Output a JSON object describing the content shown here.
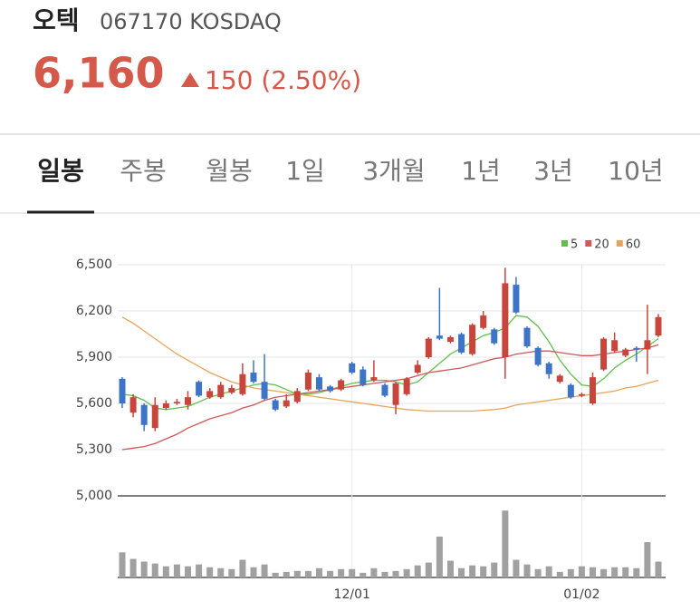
{
  "header": {
    "name": "오텍",
    "code": "067170 KOSDAQ",
    "price": "6,160",
    "change": "150 (2.50%)"
  },
  "tabs": [
    "일봉",
    "주봉",
    "월봉",
    "1일",
    "3개월",
    "1년",
    "3년",
    "10년"
  ],
  "chart_data": {
    "type": "candlestick",
    "categories": [
      null,
      null,
      null,
      null,
      null,
      null,
      null,
      null,
      null,
      null,
      null,
      null,
      null,
      null,
      null,
      null,
      null,
      null,
      null,
      null,
      null,
      "12/01",
      null,
      null,
      null,
      null,
      null,
      null,
      null,
      null,
      null,
      null,
      null,
      null,
      null,
      null,
      null,
      null,
      null,
      null,
      null,
      null,
      "01/02",
      null,
      null,
      null,
      null,
      null,
      null,
      null
    ],
    "open": [
      5760,
      5540,
      5590,
      5440,
      5570,
      5600,
      5590,
      5740,
      5640,
      5640,
      5670,
      5660,
      5800,
      5740,
      5620,
      5580,
      5610,
      5690,
      5770,
      5710,
      5690,
      5860,
      5820,
      5750,
      5720,
      5590,
      5660,
      5800,
      5900,
      6040,
      6000,
      6050,
      5920,
      6090,
      6080,
      5900,
      6370,
      6090,
      5960,
      5860,
      5740,
      5720,
      5650,
      5600,
      5820,
      5940,
      5910,
      5960,
      5950,
      6040
    ],
    "high": [
      5770,
      5660,
      5600,
      5640,
      5620,
      5630,
      5680,
      5750,
      5700,
      5740,
      5720,
      5860,
      5880,
      5920,
      5630,
      5660,
      5700,
      5820,
      5790,
      5720,
      5760,
      5870,
      5840,
      5880,
      5730,
      5740,
      5770,
      5880,
      6030,
      6350,
      6040,
      6060,
      6120,
      6200,
      6090,
      6480,
      6420,
      6100,
      5970,
      5870,
      5790,
      5730,
      5670,
      5800,
      6030,
      6060,
      5960,
      5970,
      6240,
      6180
    ],
    "low": [
      5570,
      5510,
      5420,
      5420,
      5560,
      5590,
      5560,
      5640,
      5630,
      5630,
      5660,
      5650,
      5730,
      5620,
      5550,
      5570,
      5600,
      5680,
      5680,
      5670,
      5680,
      5790,
      5710,
      5740,
      5640,
      5530,
      5650,
      5790,
      5890,
      6010,
      5990,
      5920,
      5910,
      6080,
      5980,
      5760,
      6180,
      5960,
      5840,
      5760,
      5730,
      5630,
      5640,
      5590,
      5810,
      5930,
      5900,
      5870,
      5790,
      6030
    ],
    "close": [
      5600,
      5640,
      5460,
      5590,
      5600,
      5610,
      5640,
      5650,
      5680,
      5720,
      5700,
      5790,
      5740,
      5630,
      5560,
      5620,
      5680,
      5800,
      5690,
      5680,
      5750,
      5800,
      5720,
      5770,
      5650,
      5730,
      5760,
      5850,
      6020,
      6020,
      6030,
      5930,
      6110,
      6170,
      5990,
      6380,
      6190,
      5970,
      5850,
      5790,
      5780,
      5640,
      5660,
      5770,
      6020,
      6010,
      5950,
      5950,
      6010,
      6160
    ],
    "volume": [
      27,
      20,
      17,
      15,
      12,
      14,
      12,
      14,
      11,
      10,
      9,
      19,
      11,
      14,
      5,
      6,
      7,
      7,
      10,
      7,
      9,
      9,
      5,
      10,
      6,
      7,
      9,
      13,
      16,
      44,
      18,
      10,
      13,
      12,
      16,
      72,
      19,
      14,
      9,
      12,
      6,
      9,
      12,
      11,
      9,
      11,
      11,
      10,
      38,
      17
    ],
    "vlim": [
      0,
      80
    ],
    "up_color": "#c8453c",
    "down_color": "#3e74c8",
    "volume_color": "#a0a0a0",
    "series": [
      {
        "name": "5",
        "color": "#5fbf4a",
        "values": [
          5660,
          5650,
          5620,
          5570,
          5560,
          5570,
          5580,
          5610,
          5640,
          5660,
          5680,
          5700,
          5720,
          5730,
          5720,
          5690,
          5660,
          5660,
          5670,
          5690,
          5710,
          5730,
          5740,
          5750,
          5750,
          5740,
          5720,
          5740,
          5800,
          5860,
          5920,
          5960,
          6000,
          6040,
          6060,
          6090,
          6170,
          6160,
          6100,
          6000,
          5880,
          5790,
          5720,
          5710,
          5760,
          5830,
          5880,
          5920,
          5970,
          6020
        ]
      },
      {
        "name": "20",
        "color": "#d0585a",
        "values": [
          5300,
          5310,
          5320,
          5340,
          5370,
          5400,
          5440,
          5470,
          5500,
          5520,
          5540,
          5570,
          5590,
          5620,
          5640,
          5650,
          5660,
          5670,
          5680,
          5690,
          5700,
          5710,
          5720,
          5730,
          5740,
          5750,
          5760,
          5780,
          5800,
          5810,
          5820,
          5830,
          5850,
          5870,
          5890,
          5900,
          5920,
          5930,
          5940,
          5940,
          5930,
          5920,
          5910,
          5910,
          5920,
          5930,
          5940,
          5950,
          5960,
          5980
        ]
      },
      {
        "name": "60",
        "color": "#e8a45c",
        "values": [
          6160,
          6120,
          6070,
          6020,
          5970,
          5920,
          5880,
          5840,
          5800,
          5770,
          5740,
          5720,
          5700,
          5690,
          5680,
          5670,
          5660,
          5650,
          5640,
          5630,
          5620,
          5610,
          5600,
          5590,
          5580,
          5570,
          5560,
          5555,
          5550,
          5550,
          5550,
          5550,
          5550,
          5555,
          5560,
          5570,
          5590,
          5600,
          5610,
          5620,
          5630,
          5640,
          5650,
          5660,
          5670,
          5680,
          5700,
          5710,
          5730,
          5750
        ]
      }
    ],
    "ylim": [
      5000,
      6500
    ],
    "yticks": [
      {
        "value": 5000,
        "label": "5,000"
      },
      {
        "value": 5300,
        "label": "5,300"
      },
      {
        "value": 5600,
        "label": "5,600"
      },
      {
        "value": 5900,
        "label": "5,900"
      },
      {
        "value": 6200,
        "label": "6,200"
      },
      {
        "value": 6500,
        "label": "6,500"
      }
    ],
    "grid": true
  }
}
